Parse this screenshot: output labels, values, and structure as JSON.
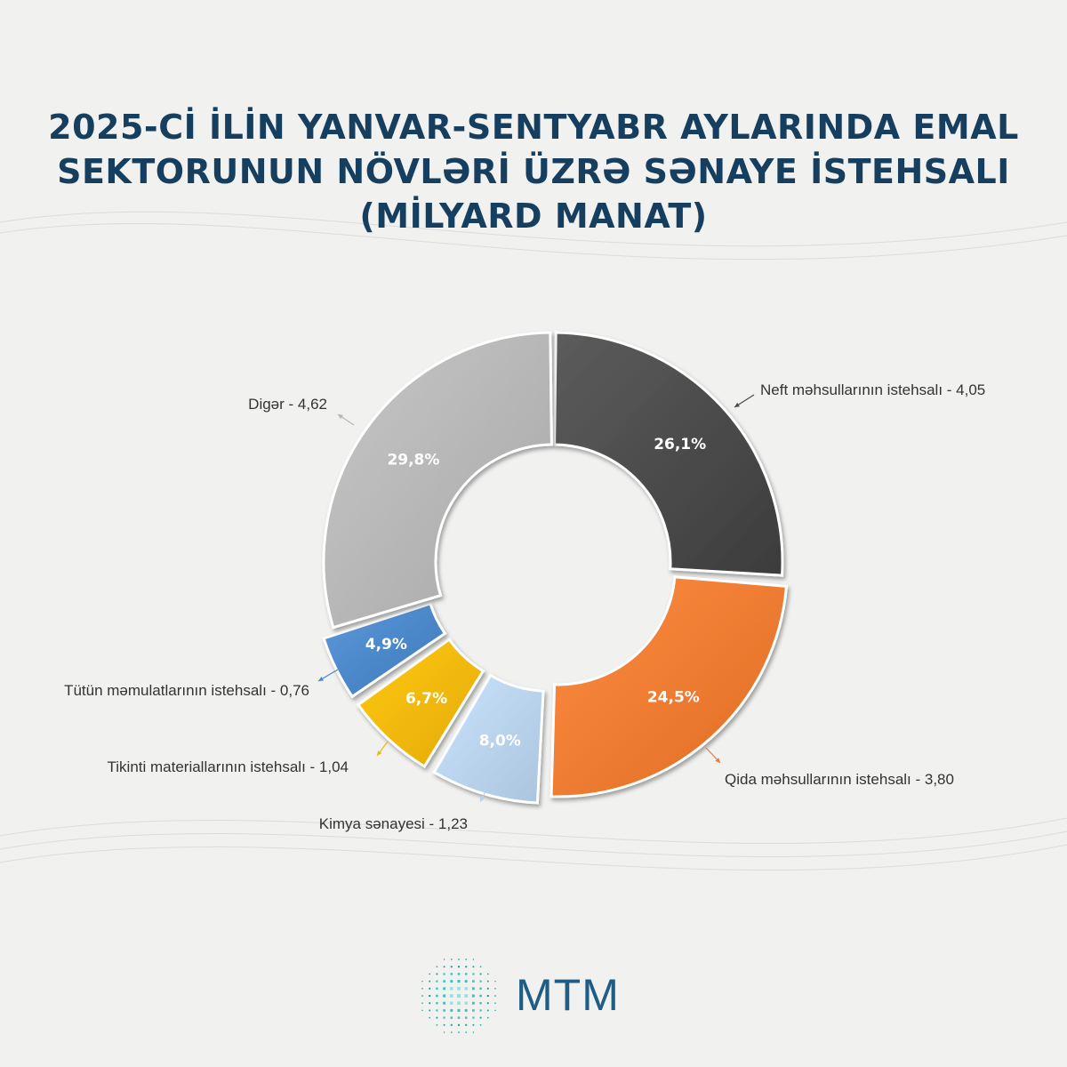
{
  "title": {
    "line1": "2025-Cİ İLİN YANVAR-SENTYABR AYLARINDA EMAL",
    "line2": "SEKTORUNUN NÖVLƏRİ ÜZRƏ SƏNAYE İSTEHSALI",
    "line3": "(MİLYARD MANAT)"
  },
  "chart_data": {
    "type": "pie",
    "subtype": "donut",
    "title": "2025-Cİ İLİN YANVAR-SENTYABR AYLARINDA EMAL SEKTORUNUN NÖVLƏRİ ÜZRƏ SƏNAYE İSTEHSALI (MİLYARD MANAT)",
    "unit": "milyard manat",
    "slices": [
      {
        "name": "Neft məhsullarının istehsalı",
        "value": 4.05,
        "percent_label": "26,1%",
        "callout": "Neft məhsullarının istehsalı - 4,05",
        "color": "#4a4a4a"
      },
      {
        "name": "Qida məhsullarının istehsalı",
        "value": 3.8,
        "percent_label": "24,5%",
        "callout": "Qida məhsullarının istehsalı - 3,80",
        "color": "#ec7a30"
      },
      {
        "name": "Kimya sənayesi",
        "value": 1.23,
        "percent_label": "8,0%",
        "callout": "Kimya sənayesi - 1,23",
        "color": "#b8d2ec"
      },
      {
        "name": "Tikinti materiallarının istehsalı",
        "value": 1.04,
        "percent_label": "6,7%",
        "callout": "Tikinti materiallarının istehsalı - 1,04",
        "color": "#f2b705"
      },
      {
        "name": "Tütün məmulatlarının istehsalı",
        "value": 0.76,
        "percent_label": "4,9%",
        "callout": "Tütün məmulatlarının istehsalı - 0,76",
        "color": "#4a86c8"
      },
      {
        "name": "Digər",
        "value": 4.62,
        "percent_label": "29,8%",
        "callout": "Digər - 4,62",
        "color": "#b5b5b5"
      }
    ]
  },
  "logo": {
    "text": "MTM",
    "mark_icon": "mtm-starburst-icon",
    "color": "#1e5d85"
  }
}
